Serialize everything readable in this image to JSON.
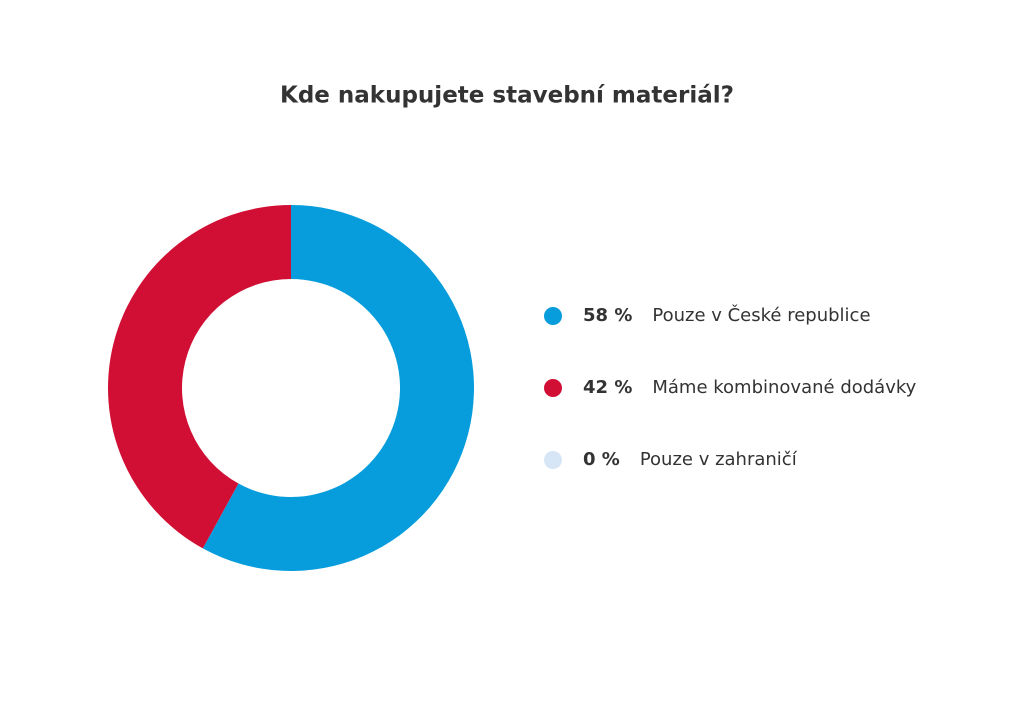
{
  "chart_data": {
    "type": "pie",
    "title": "Kde nakupujete stavební materiál?",
    "categories": [
      "Pouze v České republice",
      "Máme kombinované dodávky",
      "Pouze v zahraničí"
    ],
    "values": [
      58,
      42,
      0
    ],
    "value_labels": [
      "58 %",
      "42 %",
      "0 %"
    ],
    "colors": [
      "#079ddd",
      "#d10f34",
      "#d6e6f7"
    ]
  }
}
